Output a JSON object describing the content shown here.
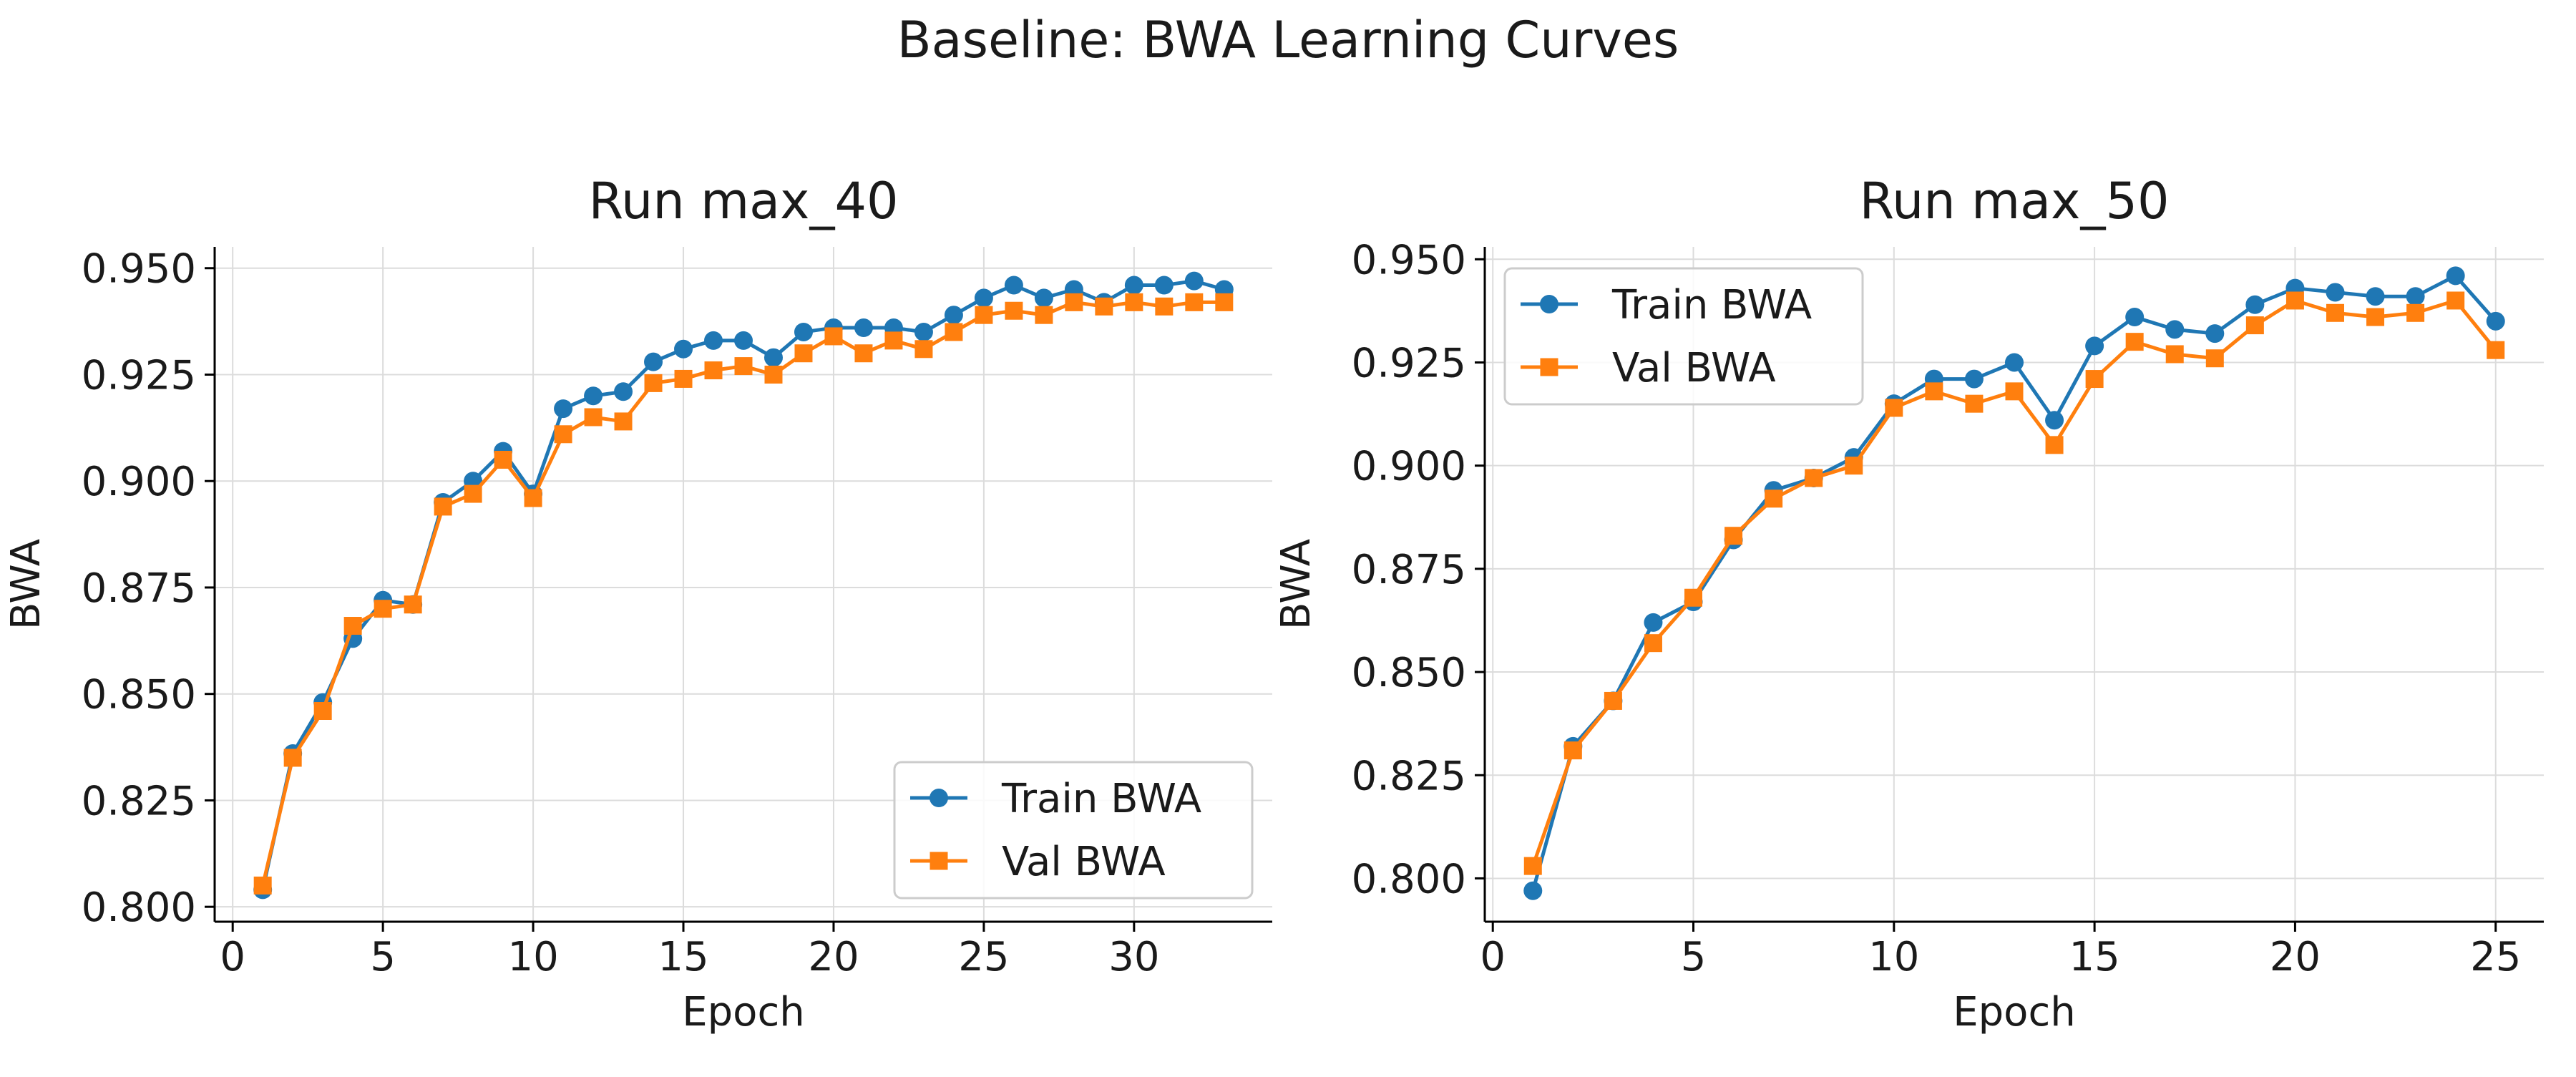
{
  "suptitle": "Baseline: BWA Learning Curves",
  "colors": {
    "train": "#1f77b4",
    "val": "#ff7f0e"
  },
  "chart_data": [
    {
      "type": "line",
      "title": "Run max_40",
      "xlabel": "Epoch",
      "ylabel": "BWA",
      "xlim": [
        -0.6,
        34.6
      ],
      "ylim": [
        0.7965,
        0.955
      ],
      "xticks": [
        0,
        5,
        10,
        15,
        20,
        25,
        30
      ],
      "yticks": [
        0.8,
        0.825,
        0.85,
        0.875,
        0.9,
        0.925,
        0.95
      ],
      "ytick_labels": [
        "0.800",
        "0.825",
        "0.850",
        "0.875",
        "0.900",
        "0.925",
        "0.950"
      ],
      "grid": true,
      "legend_position": "lower-right",
      "series": [
        {
          "name": "Train BWA",
          "marker": "circle",
          "x": [
            1,
            2,
            3,
            4,
            5,
            6,
            7,
            8,
            9,
            10,
            11,
            12,
            13,
            14,
            15,
            16,
            17,
            18,
            19,
            20,
            21,
            22,
            23,
            24,
            25,
            26,
            27,
            28,
            29,
            30,
            31,
            32,
            33
          ],
          "values": [
            0.804,
            0.836,
            0.848,
            0.863,
            0.872,
            0.871,
            0.895,
            0.9,
            0.907,
            0.897,
            0.917,
            0.92,
            0.921,
            0.928,
            0.931,
            0.933,
            0.933,
            0.929,
            0.935,
            0.936,
            0.936,
            0.936,
            0.935,
            0.939,
            0.943,
            0.946,
            0.943,
            0.945,
            0.942,
            0.946,
            0.946,
            0.947,
            0.945
          ]
        },
        {
          "name": "Val BWA",
          "marker": "square",
          "x": [
            1,
            2,
            3,
            4,
            5,
            6,
            7,
            8,
            9,
            10,
            11,
            12,
            13,
            14,
            15,
            16,
            17,
            18,
            19,
            20,
            21,
            22,
            23,
            24,
            25,
            26,
            27,
            28,
            29,
            30,
            31,
            32,
            33
          ],
          "values": [
            0.805,
            0.835,
            0.846,
            0.866,
            0.87,
            0.871,
            0.894,
            0.897,
            0.905,
            0.896,
            0.911,
            0.915,
            0.914,
            0.923,
            0.924,
            0.926,
            0.927,
            0.925,
            0.93,
            0.934,
            0.93,
            0.933,
            0.931,
            0.935,
            0.939,
            0.94,
            0.939,
            0.942,
            0.941,
            0.942,
            0.941,
            0.942,
            0.942
          ]
        }
      ]
    },
    {
      "type": "line",
      "title": "Run max_50",
      "xlabel": "Epoch",
      "ylabel": "BWA",
      "xlim": [
        -0.2,
        26.2
      ],
      "ylim": [
        0.7895,
        0.953
      ],
      "xticks": [
        0,
        5,
        10,
        15,
        20,
        25
      ],
      "yticks": [
        0.8,
        0.825,
        0.85,
        0.875,
        0.9,
        0.925,
        0.95
      ],
      "ytick_labels": [
        "0.800",
        "0.825",
        "0.850",
        "0.875",
        "0.900",
        "0.925",
        "0.950"
      ],
      "grid": true,
      "legend_position": "upper-left",
      "series": [
        {
          "name": "Train BWA",
          "marker": "circle",
          "x": [
            1,
            2,
            3,
            4,
            5,
            6,
            7,
            8,
            9,
            10,
            11,
            12,
            13,
            14,
            15,
            16,
            17,
            18,
            19,
            20,
            21,
            22,
            23,
            24,
            25
          ],
          "values": [
            0.797,
            0.832,
            0.843,
            0.862,
            0.867,
            0.882,
            0.894,
            0.897,
            0.902,
            0.915,
            0.921,
            0.921,
            0.925,
            0.911,
            0.929,
            0.936,
            0.933,
            0.932,
            0.939,
            0.943,
            0.942,
            0.941,
            0.941,
            0.946,
            0.935
          ]
        },
        {
          "name": "Val BWA",
          "marker": "square",
          "x": [
            1,
            2,
            3,
            4,
            5,
            6,
            7,
            8,
            9,
            10,
            11,
            12,
            13,
            14,
            15,
            16,
            17,
            18,
            19,
            20,
            21,
            22,
            23,
            24,
            25
          ],
          "values": [
            0.803,
            0.831,
            0.843,
            0.857,
            0.868,
            0.883,
            0.892,
            0.897,
            0.9,
            0.914,
            0.918,
            0.915,
            0.918,
            0.905,
            0.921,
            0.93,
            0.927,
            0.926,
            0.934,
            0.94,
            0.937,
            0.936,
            0.937,
            0.94,
            0.928
          ]
        }
      ]
    }
  ]
}
